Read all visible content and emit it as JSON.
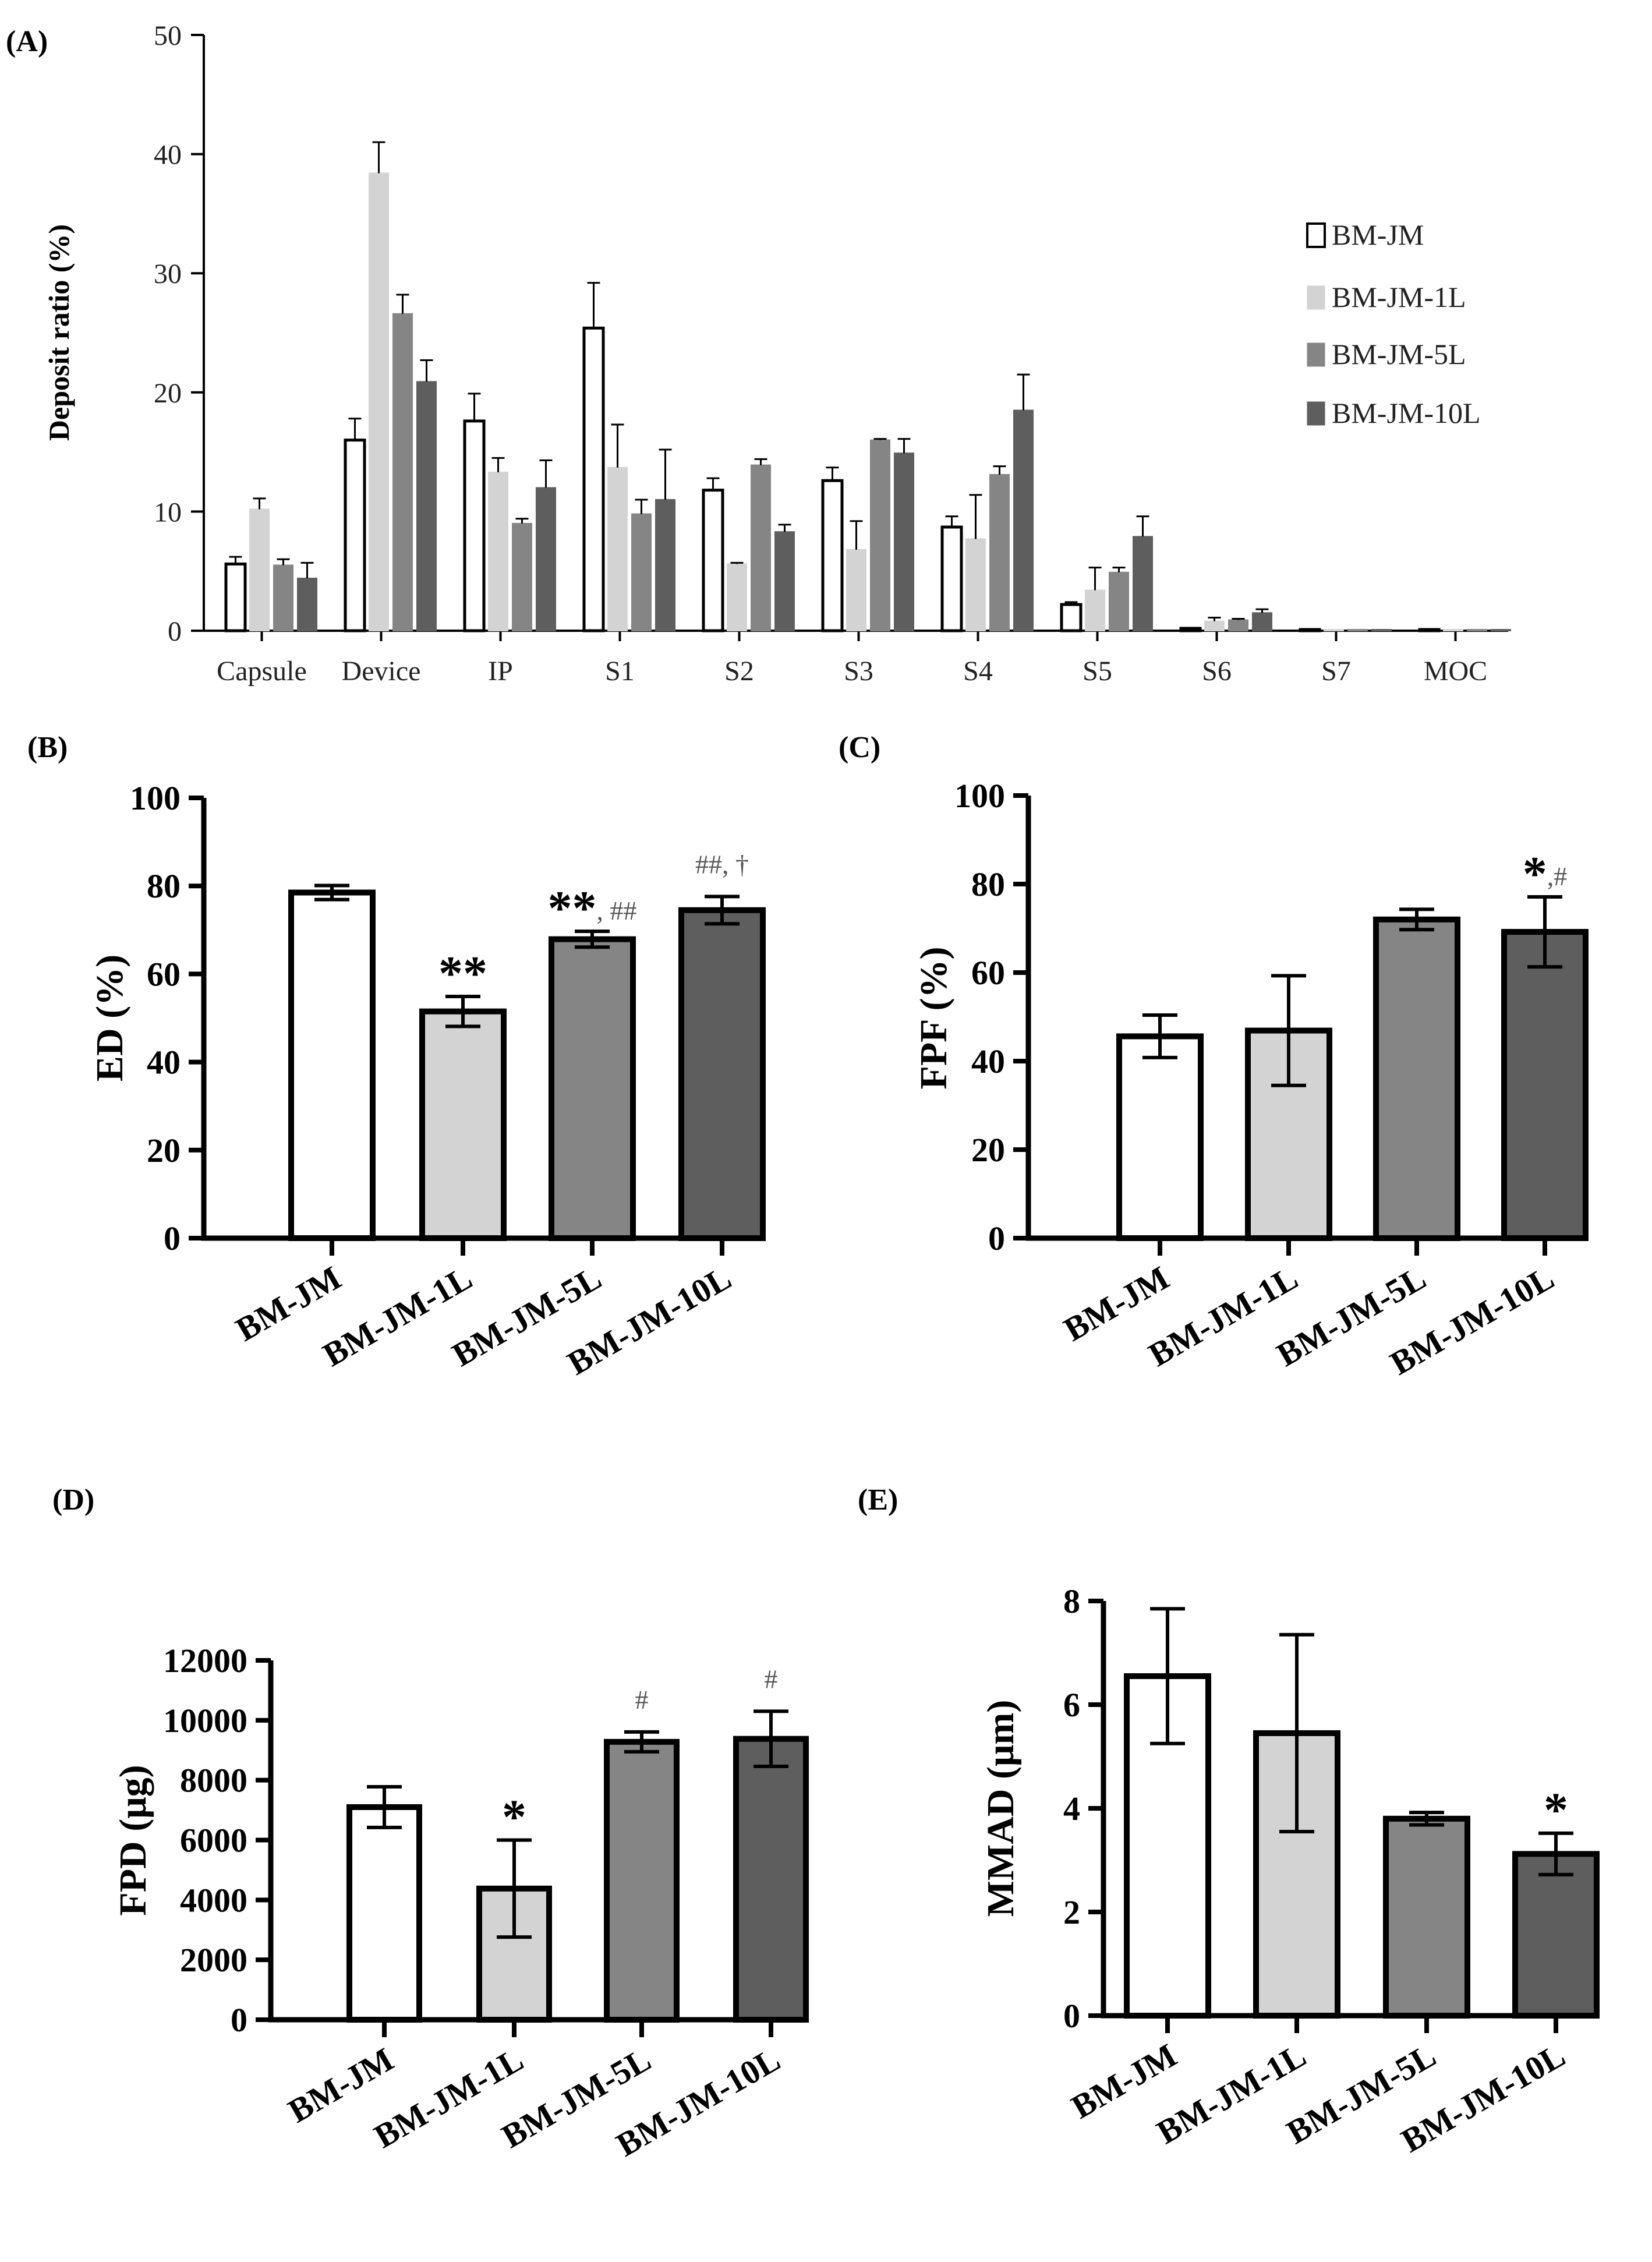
{
  "colors": {
    "BM-JM": "#ffffff",
    "BM-JM-1L": "#d3d3d3",
    "BM-JM-5L": "#858585",
    "BM-JM-10L": "#5e5e5e",
    "axis": "#000000"
  },
  "chart_data": [
    {
      "id": "A",
      "panel_label": "(A)",
      "type": "bar",
      "ylabel": "Deposit ratio (%)",
      "xlabel": "",
      "ylim": [
        0,
        50
      ],
      "yticks": [
        "0",
        "10",
        "20",
        "30",
        "40",
        "50"
      ],
      "legend_position": "right",
      "categories": [
        "Capsule",
        "Device",
        "IP",
        "S1",
        "S2",
        "S3",
        "S4",
        "S5",
        "S6",
        "S7",
        "MOC"
      ],
      "series": [
        {
          "name": "BM-JM",
          "values": [
            5.6,
            16.0,
            17.6,
            25.4,
            11.8,
            12.6,
            8.7,
            2.2,
            0.2,
            0.1,
            0.1
          ],
          "errors": [
            0.6,
            1.8,
            2.3,
            3.8,
            1.0,
            1.1,
            0.9,
            0.2,
            0.1,
            0.05,
            0.05
          ]
        },
        {
          "name": "BM-JM-1L",
          "values": [
            10.2,
            38.4,
            13.3,
            13.7,
            5.6,
            6.8,
            7.7,
            3.4,
            0.8,
            0.05,
            0.05
          ],
          "errors": [
            0.9,
            2.6,
            1.2,
            3.6,
            0.1,
            2.4,
            3.7,
            1.9,
            0.3,
            0.05,
            0.05
          ]
        },
        {
          "name": "BM-JM-5L",
          "values": [
            5.5,
            26.6,
            9.0,
            9.8,
            13.9,
            16.0,
            13.1,
            4.9,
            0.9,
            0.05,
            0.05
          ],
          "errors": [
            0.5,
            1.6,
            0.4,
            1.2,
            0.5,
            0.1,
            0.7,
            0.4,
            0.1,
            0.05,
            0.05
          ]
        },
        {
          "name": "BM-JM-10L",
          "values": [
            4.4,
            20.9,
            12.0,
            11.0,
            8.3,
            14.9,
            18.5,
            7.9,
            1.5,
            0.05,
            0.05
          ],
          "errors": [
            1.3,
            1.8,
            2.3,
            4.2,
            0.6,
            1.2,
            3.0,
            1.7,
            0.3,
            0.05,
            0.05
          ]
        }
      ]
    },
    {
      "id": "B",
      "panel_label": "(B)",
      "type": "bar",
      "ylabel": "ED  (%)",
      "ylim": [
        0,
        100
      ],
      "yticks": [
        "0",
        "20",
        "40",
        "60",
        "80",
        "100"
      ],
      "categories": [
        "BM-JM",
        "BM-JM-1L",
        "BM-JM-5L",
        "BM-JM-10L"
      ],
      "values": [
        78.5,
        51.5,
        67.9,
        74.5
      ],
      "errors": [
        1.6,
        3.4,
        1.8,
        3.1
      ],
      "annotations": [
        {
          "bar": 1,
          "bold": "**",
          "light": ""
        },
        {
          "bar": 2,
          "bold": "**",
          "light": ", ##"
        },
        {
          "bar": 3,
          "bold": "",
          "light": "##, †"
        }
      ]
    },
    {
      "id": "C",
      "panel_label": "(C)",
      "type": "bar",
      "ylabel": "FPF  (%)",
      "ylim": [
        0,
        100
      ],
      "yticks": [
        "0",
        "20",
        "40",
        "60",
        "80",
        "100"
      ],
      "categories": [
        "BM-JM",
        "BM-JM-1L",
        "BM-JM-5L",
        "BM-JM-10L"
      ],
      "values": [
        45.6,
        46.9,
        72.0,
        69.2
      ],
      "errors": [
        4.8,
        12.4,
        2.3,
        7.9
      ],
      "annotations": [
        {
          "bar": 3,
          "bold": "*",
          "light": ",#"
        }
      ]
    },
    {
      "id": "D",
      "panel_label": "(D)",
      "type": "bar",
      "ylabel": "FPD  (μg)",
      "ylim": [
        0,
        12000
      ],
      "yticks": [
        "0",
        "2000",
        "4000",
        "6000",
        "8000",
        "10000",
        "12000"
      ],
      "categories": [
        "BM-JM",
        "BM-JM-1L",
        "BM-JM-5L",
        "BM-JM-10L"
      ],
      "values": [
        7100,
        4380,
        9280,
        9380
      ],
      "errors": [
        680,
        1620,
        330,
        920
      ],
      "annotations": [
        {
          "bar": 1,
          "bold": "*",
          "light": ""
        },
        {
          "bar": 2,
          "bold": "",
          "light": "#"
        },
        {
          "bar": 3,
          "bold": "",
          "light": "#"
        }
      ]
    },
    {
      "id": "E",
      "panel_label": "(E)",
      "type": "bar",
      "ylabel": "MMAD  (μm)",
      "ylim": [
        0,
        8
      ],
      "yticks": [
        "0",
        "2",
        "4",
        "6",
        "8"
      ],
      "categories": [
        "BM-JM",
        "BM-JM-1L",
        "BM-JM-5L",
        "BM-JM-10L"
      ],
      "values": [
        6.55,
        5.45,
        3.8,
        3.12
      ],
      "errors": [
        1.3,
        1.9,
        0.12,
        0.4
      ],
      "annotations": [
        {
          "bar": 3,
          "bold": "*",
          "light": ""
        }
      ]
    }
  ]
}
